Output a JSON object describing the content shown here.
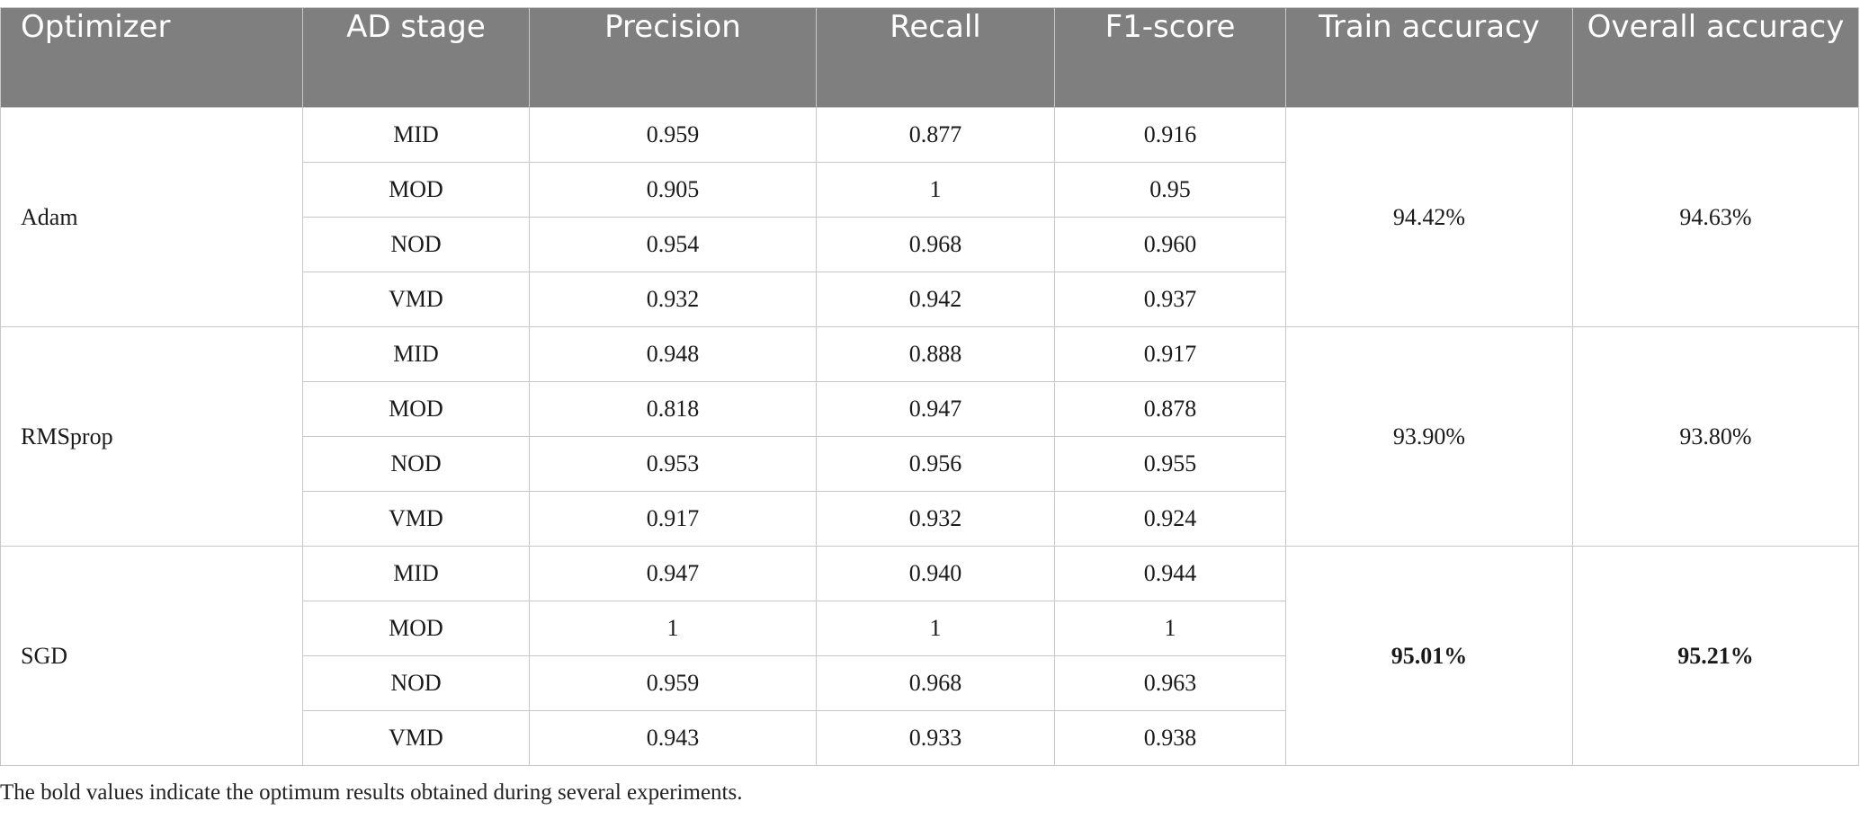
{
  "table": {
    "headers": [
      "Optimizer",
      "AD stage",
      "Precision",
      "Recall",
      "F1-score",
      "Train accuracy",
      "Overall accuracy"
    ],
    "groups": [
      {
        "optimizer": "Adam",
        "train_accuracy": "94.42%",
        "overall_accuracy": "94.63%",
        "bold": false,
        "rows": [
          {
            "stage": "MID",
            "precision": "0.959",
            "recall": "0.877",
            "f1": "0.916"
          },
          {
            "stage": "MOD",
            "precision": "0.905",
            "recall": "1",
            "f1": "0.95"
          },
          {
            "stage": "NOD",
            "precision": "0.954",
            "recall": "0.968",
            "f1": "0.960"
          },
          {
            "stage": "VMD",
            "precision": "0.932",
            "recall": "0.942",
            "f1": "0.937"
          }
        ]
      },
      {
        "optimizer": "RMSprop",
        "train_accuracy": "93.90%",
        "overall_accuracy": "93.80%",
        "bold": false,
        "rows": [
          {
            "stage": "MID",
            "precision": "0.948",
            "recall": "0.888",
            "f1": "0.917"
          },
          {
            "stage": "MOD",
            "precision": "0.818",
            "recall": "0.947",
            "f1": "0.878"
          },
          {
            "stage": "NOD",
            "precision": "0.953",
            "recall": "0.956",
            "f1": "0.955"
          },
          {
            "stage": "VMD",
            "precision": "0.917",
            "recall": "0.932",
            "f1": "0.924"
          }
        ]
      },
      {
        "optimizer": "SGD",
        "train_accuracy": "95.01%",
        "overall_accuracy": "95.21%",
        "bold": true,
        "rows": [
          {
            "stage": "MID",
            "precision": "0.947",
            "recall": "0.940",
            "f1": "0.944"
          },
          {
            "stage": "MOD",
            "precision": "1",
            "recall": "1",
            "f1": "1"
          },
          {
            "stage": "NOD",
            "precision": "0.959",
            "recall": "0.968",
            "f1": "0.963"
          },
          {
            "stage": "VMD",
            "precision": "0.943",
            "recall": "0.933",
            "f1": "0.938"
          }
        ]
      }
    ]
  },
  "footnote": "The bold values indicate the optimum results obtained during several experiments.",
  "colors": {
    "header_bg": "#7f7f7f",
    "header_text": "#ffffff",
    "border": "#c7c7c7"
  }
}
